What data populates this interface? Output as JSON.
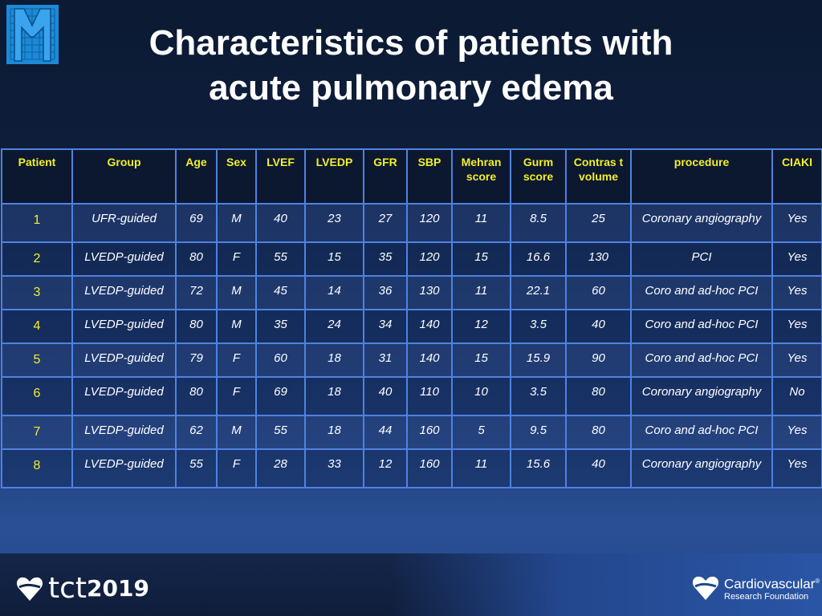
{
  "slide": {
    "title_line1": "Characteristics of patients with",
    "title_line2": "acute pulmonary edema"
  },
  "table": {
    "headers": [
      "Patient",
      "Group",
      "Age",
      "Sex",
      "LVEF",
      "LVEDP",
      "GFR",
      "SBP",
      "Mehran score",
      "Gurm score",
      "Contras t volume",
      "procedure",
      "CIAKI"
    ],
    "rows": [
      [
        "1",
        "UFR-guided",
        "69",
        "M",
        "40",
        "23",
        "27",
        "120",
        "11",
        "8.5",
        "25",
        "Coronary angiography",
        "Yes"
      ],
      [
        "2",
        "LVEDP-guided",
        "80",
        "F",
        "55",
        "15",
        "35",
        "120",
        "15",
        "16.6",
        "130",
        "PCI",
        "Yes"
      ],
      [
        "3",
        "LVEDP-guided",
        "72",
        "M",
        "45",
        "14",
        "36",
        "130",
        "11",
        "22.1",
        "60",
        "Coro and ad-hoc PCI",
        "Yes"
      ],
      [
        "4",
        "LVEDP-guided",
        "80",
        "M",
        "35",
        "24",
        "34",
        "140",
        "12",
        "3.5",
        "40",
        "Coro and ad-hoc PCI",
        "Yes"
      ],
      [
        "5",
        "LVEDP-guided",
        "79",
        "F",
        "60",
        "18",
        "31",
        "140",
        "15",
        "15.9",
        "90",
        "Coro and ad-hoc PCI",
        "Yes"
      ],
      [
        "6",
        "LVEDP-guided",
        "80",
        "F",
        "69",
        "18",
        "40",
        "110",
        "10",
        "3.5",
        "80",
        "Coronary angiography",
        "No"
      ],
      [
        "7",
        "LVEDP-guided",
        "62",
        "M",
        "55",
        "18",
        "44",
        "160",
        "5",
        "9.5",
        "80",
        "Coro and ad-hoc PCI",
        "Yes"
      ],
      [
        "8",
        "LVEDP-guided",
        "55",
        "F",
        "28",
        "33",
        "12",
        "160",
        "11",
        "15.6",
        "40",
        "Coronary angiography",
        "Yes"
      ]
    ]
  },
  "footer": {
    "left_logo_text": "tct",
    "left_logo_year": "2019",
    "right_logo_line1": "Cardiovascular",
    "right_logo_reg": "®",
    "right_logo_line2": "Research Foundation"
  },
  "colors": {
    "header_text": "#f2ef2a",
    "grid": "#4f82e0",
    "logo_blue": "#1c8ad8"
  }
}
